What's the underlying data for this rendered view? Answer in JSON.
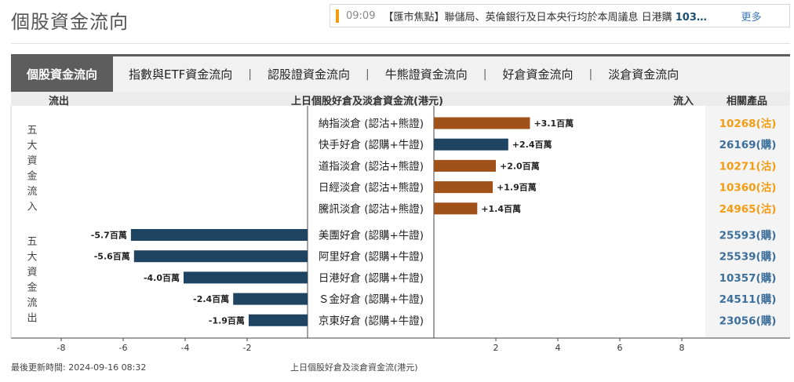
{
  "page": {
    "title": "個股資金流向"
  },
  "ticker": {
    "time": "09:09",
    "headline": "【匯市焦點】聯儲局、英倫銀行及日本央行均於本周議息 日港購 ",
    "highlight": "103…",
    "more_label": "更多"
  },
  "tabs": [
    {
      "label": "個股資金流向",
      "active": true
    },
    {
      "label": "指數與ETF資金流向",
      "active": false
    },
    {
      "label": "認股證資金流向",
      "active": false
    },
    {
      "label": "牛熊證資金流向",
      "active": false
    },
    {
      "label": "好倉資金流向",
      "active": false
    },
    {
      "label": "淡倉資金流向",
      "active": false
    }
  ],
  "tab_separator": "|",
  "header": {
    "outflow": "流出",
    "center": "上日個股好倉及淡倉資金流(港元)",
    "inflow": "流入",
    "related": "相關產品"
  },
  "groups": {
    "inflow_label": [
      "五",
      "大",
      "資",
      "金",
      "流",
      "入"
    ],
    "outflow_label": [
      "五",
      "大",
      "資",
      "金",
      "流",
      "出"
    ]
  },
  "colors": {
    "inflow_bear": "#a0521a",
    "bull": "#1e4461",
    "code_bear": "#f39c12",
    "code_bull": "#3d6f9b"
  },
  "chart_data": {
    "type": "bar",
    "orientation": "horizontal-diverging",
    "unit": "百萬",
    "xlim": [
      -8,
      8
    ],
    "xticks": [
      "-8",
      "-6",
      "-4",
      "-2",
      "2",
      "4",
      "6",
      "8"
    ],
    "xtick_values": [
      -8,
      -6,
      -4,
      -2,
      2,
      4,
      6,
      8
    ],
    "xlabel": "上日個股好倉及淡倉資金流(港元)",
    "rows": [
      {
        "name": "納指淡倉 (認沽+熊證)",
        "value": 3.1,
        "label": "+3.1百萬",
        "code": "10268(沽)",
        "kind": "bear"
      },
      {
        "name": "快手好倉 (認購+牛證)",
        "value": 2.4,
        "label": "+2.4百萬",
        "code": "26169(購)",
        "kind": "bull"
      },
      {
        "name": "道指淡倉 (認沽+熊證)",
        "value": 2.0,
        "label": "+2.0百萬",
        "code": "10271(沽)",
        "kind": "bear"
      },
      {
        "name": "日經淡倉 (認沽+熊證)",
        "value": 1.9,
        "label": "+1.9百萬",
        "code": "10360(沽)",
        "kind": "bear"
      },
      {
        "name": "騰訊淡倉 (認沽+熊證)",
        "value": 1.4,
        "label": "+1.4百萬",
        "code": "24965(沽)",
        "kind": "bear"
      },
      {
        "name": "美團好倉 (認購+牛證)",
        "value": -5.7,
        "label": "-5.7百萬",
        "code": "25593(購)",
        "kind": "bull"
      },
      {
        "name": "阿里好倉 (認購+牛證)",
        "value": -5.6,
        "label": "-5.6百萬",
        "code": "25539(購)",
        "kind": "bull"
      },
      {
        "name": "日港好倉 (認購+牛證)",
        "value": -4.0,
        "label": "-4.0百萬",
        "code": "10357(購)",
        "kind": "bull"
      },
      {
        "name": "Ｓ金好倉 (認購+牛證)",
        "value": -2.4,
        "label": "-2.4百萬",
        "code": "24511(購)",
        "kind": "bull"
      },
      {
        "name": "京東好倉 (認購+牛證)",
        "value": -1.9,
        "label": "-1.9百萬",
        "code": "23056(購)",
        "kind": "bull"
      }
    ]
  },
  "footer": {
    "updated": "最後更新時間: 2024-09-16 08:32",
    "caption": "上日個股好倉及淡倉資金流(港元)"
  }
}
